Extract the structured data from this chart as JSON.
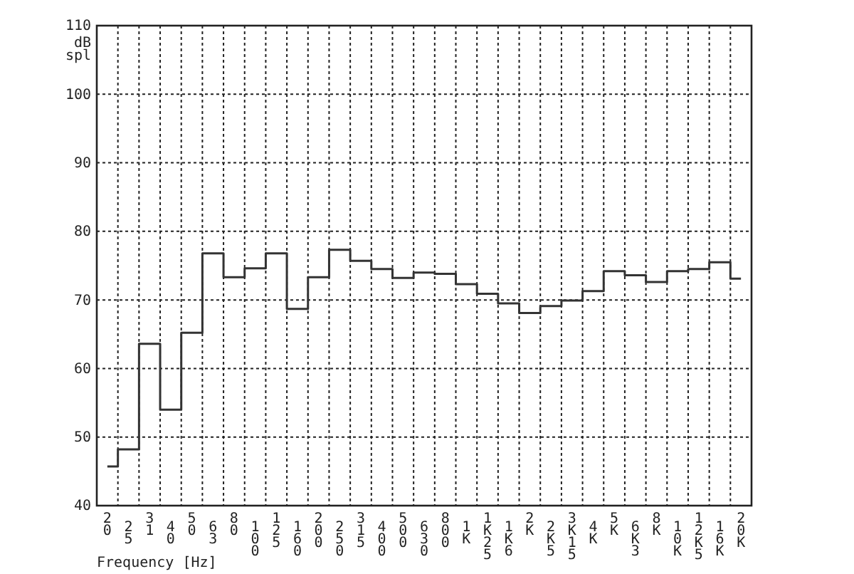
{
  "chart_data": {
    "type": "step",
    "xlabel": "Frequency [Hz]",
    "ylabel": "dB spl",
    "categories": [
      "20",
      "25",
      "31",
      "40",
      "50",
      "63",
      "80",
      "100",
      "125",
      "160",
      "200",
      "250",
      "315",
      "400",
      "500",
      "630",
      "800",
      "1K",
      "1K25",
      "1K6",
      "2K",
      "2K5",
      "3K15",
      "4K",
      "5K",
      "6K3",
      "8K",
      "10K",
      "12K5",
      "16K",
      "20K"
    ],
    "series": [
      {
        "color": "#333333",
        "values": [
          45.7,
          48.2,
          63.6,
          54.0,
          65.2,
          76.8,
          73.3,
          74.6,
          76.8,
          68.7,
          73.3,
          77.3,
          75.7,
          74.5,
          73.2,
          74.0,
          73.8,
          72.3,
          70.9,
          69.5,
          68.1,
          69.1,
          69.9,
          71.3,
          74.2,
          73.6,
          72.6,
          74.2,
          74.5,
          75.5,
          73.1
        ]
      }
    ],
    "ylim": [
      40,
      110
    ],
    "yticks": [
      40,
      50,
      60,
      70,
      80,
      90,
      100,
      110
    ],
    "grid": true,
    "line_style": "solid"
  }
}
